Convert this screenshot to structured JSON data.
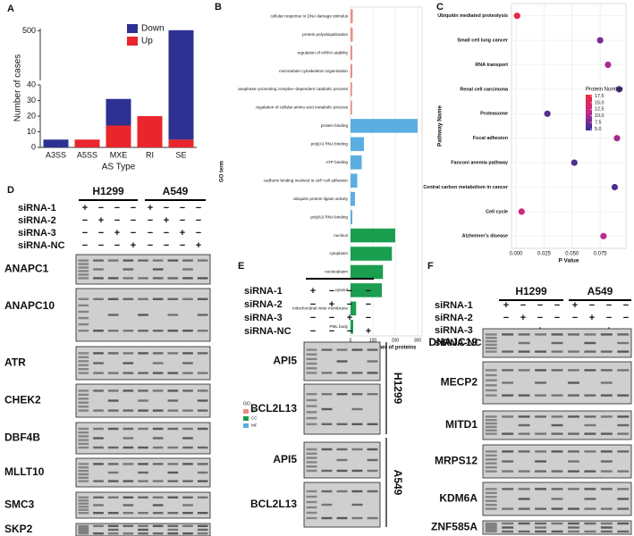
{
  "panel_letters": [
    "A",
    "B",
    "C",
    "D",
    "E",
    "F"
  ],
  "chart_data": [
    {
      "type": "stacked_bar",
      "categories": [
        "A3SS",
        "A5SS",
        "MXE",
        "RI",
        "SE"
      ],
      "series": [
        {
          "name": "Up",
          "color": "#e8262b",
          "values": [
            0,
            5,
            14,
            20,
            5
          ]
        },
        {
          "name": "Down",
          "color": "#2e3192",
          "values": [
            5,
            0,
            17,
            0,
            500
          ]
        }
      ],
      "x_label": "AS Type",
      "y_label": "Number of cases",
      "ylim": [
        0,
        520
      ],
      "axis_break": 40,
      "yticks": [
        0,
        10,
        20,
        30,
        40,
        500
      ],
      "legend": "top-right"
    },
    {
      "type": "hbar",
      "categories": [
        "cellular response to DNA damage stimulus",
        "protein polyubiquitination",
        "regulation of mRNA stability",
        "microtubule cytoskeleton organization",
        "anaphase−promoting complex−dependent catabolic process",
        "regulation of cellular amino acid metabolic process",
        "protein binding",
        "poly(A) RNA binding",
        "ATP binding",
        "cadherin binding involved in cell−cell adhesion",
        "ubiquitin protein ligase activity",
        "poly(U) RNA binding",
        "nucleus",
        "cytoplasm",
        "nucleoplasm",
        "cytosol",
        "mitochondrial inner membrane",
        "PML body"
      ],
      "values": [
        10,
        10,
        8,
        8,
        7,
        7,
        300,
        60,
        50,
        30,
        20,
        8,
        200,
        185,
        145,
        140,
        25,
        12
      ],
      "bar_groups": [
        "BP",
        "BP",
        "BP",
        "BP",
        "BP",
        "BP",
        "MF",
        "MF",
        "MF",
        "MF",
        "MF",
        "MF",
        "CC",
        "CC",
        "CC",
        "CC",
        "CC",
        "CC"
      ],
      "legend_title": "GO",
      "groups": [
        "BP",
        "CC",
        "MF"
      ],
      "group_colors": [
        "#f28b82",
        "#1a9e4f",
        "#5aaee0"
      ],
      "x_label": "The number of proteins",
      "y_label": "GO term",
      "xlim": [
        0,
        320
      ],
      "xticks": [
        0,
        100,
        200,
        300
      ],
      "grid": true
    },
    {
      "type": "scatter",
      "categories": [
        "Ubiquitin mediated proteolysis",
        "Small cell lung cancer",
        "RNA transport",
        "Renal cell carcinoma",
        "Proteasome",
        "Focal adhesion",
        "Fanconi anemia pathway",
        "Central carbon metabolism in cancer",
        "Cell cycle",
        "Alzheimer's disease"
      ],
      "values": [
        0.001,
        0.075,
        0.082,
        0.092,
        0.028,
        0.09,
        0.052,
        0.088,
        0.005,
        0.078
      ],
      "protein_numbers": [
        17.5,
        8,
        10,
        6,
        6,
        10,
        6,
        6,
        13,
        11
      ],
      "x_label": "P Value",
      "y_label": "Pathway Name",
      "xlim": [
        -0.004,
        0.098
      ],
      "xticks": [
        {
          "value": 0,
          "label": "0.000"
        },
        0.025,
        {
          "value": 0.05,
          "label": "0.050"
        },
        0.075
      ],
      "colorbar_title": "Protein Number",
      "colorbar_lim": [
        4.5,
        18
      ],
      "colorbar_colors": [
        "#2e3192",
        "#c2298f",
        "#ee2a3b"
      ],
      "colorbar_ticks": [
        {
          "value": 17.5,
          "label": "17.5"
        },
        {
          "value": 15,
          "label": "15.0"
        },
        {
          "value": 12.5,
          "label": "12.5"
        },
        {
          "value": 10,
          "label": "10.0"
        },
        {
          "value": 7.5,
          "label": "7.5"
        },
        {
          "value": 5,
          "label": "5.0"
        }
      ],
      "grid": true
    }
  ],
  "gels": [
    {
      "cell_lines": [
        "H1299",
        "A549"
      ],
      "conditions": [
        "siRNA-1",
        "siRNA-2",
        "siRNA-3",
        "siRNA-NC"
      ],
      "matrix": [
        [
          "+",
          "−",
          "−",
          "−",
          "+",
          "−",
          "−",
          "−"
        ],
        [
          "−",
          "+",
          "−",
          "−",
          "−",
          "+",
          "−",
          "−"
        ],
        [
          "−",
          "−",
          "+",
          "−",
          "−",
          "−",
          "+",
          "−"
        ],
        [
          "−",
          "−",
          "−",
          "+",
          "−",
          "−",
          "−",
          "+"
        ]
      ],
      "genes": [
        "ANAPC1",
        "ANAPC10",
        "ATR",
        "CHEK2",
        "DBF4B",
        "MLLT10",
        "SMC3",
        "SKP2"
      ]
    },
    {
      "cell_lines": [
        "H1299",
        "A549"
      ],
      "conditions": [
        "siRNA-1",
        "siRNA-2",
        "siRNA-3",
        "siRNA-NC"
      ],
      "matrix": [
        [
          "+",
          "−",
          "−",
          "−"
        ],
        [
          "−",
          "+",
          "−",
          "−"
        ],
        [
          "−",
          "−",
          "+",
          "−"
        ],
        [
          "−",
          "−",
          "−",
          "+"
        ]
      ],
      "genes": [
        "API5",
        "BCL2L13",
        "API5",
        "BCL2L13"
      ]
    },
    {
      "cell_lines": [
        "H1299",
        "A549"
      ],
      "conditions": [
        "siRNA-1",
        "siRNA-2",
        "siRNA-3",
        "siRNA-NC"
      ],
      "matrix": [
        [
          "+",
          "−",
          "−",
          "−",
          "+",
          "−",
          "−",
          "−"
        ],
        [
          "−",
          "+",
          "−",
          "−",
          "−",
          "+",
          "−",
          "−"
        ],
        [
          "−",
          "−",
          "+",
          "−",
          "−",
          "−",
          "+",
          "−"
        ],
        [
          "−",
          "−",
          "−",
          "+",
          "−",
          "−",
          "−",
          "+"
        ]
      ],
      "genes": [
        "DNAJC19",
        "MECP2",
        "MITD1",
        "MRPS12",
        "KDM6A",
        "ZNF585A"
      ]
    }
  ]
}
